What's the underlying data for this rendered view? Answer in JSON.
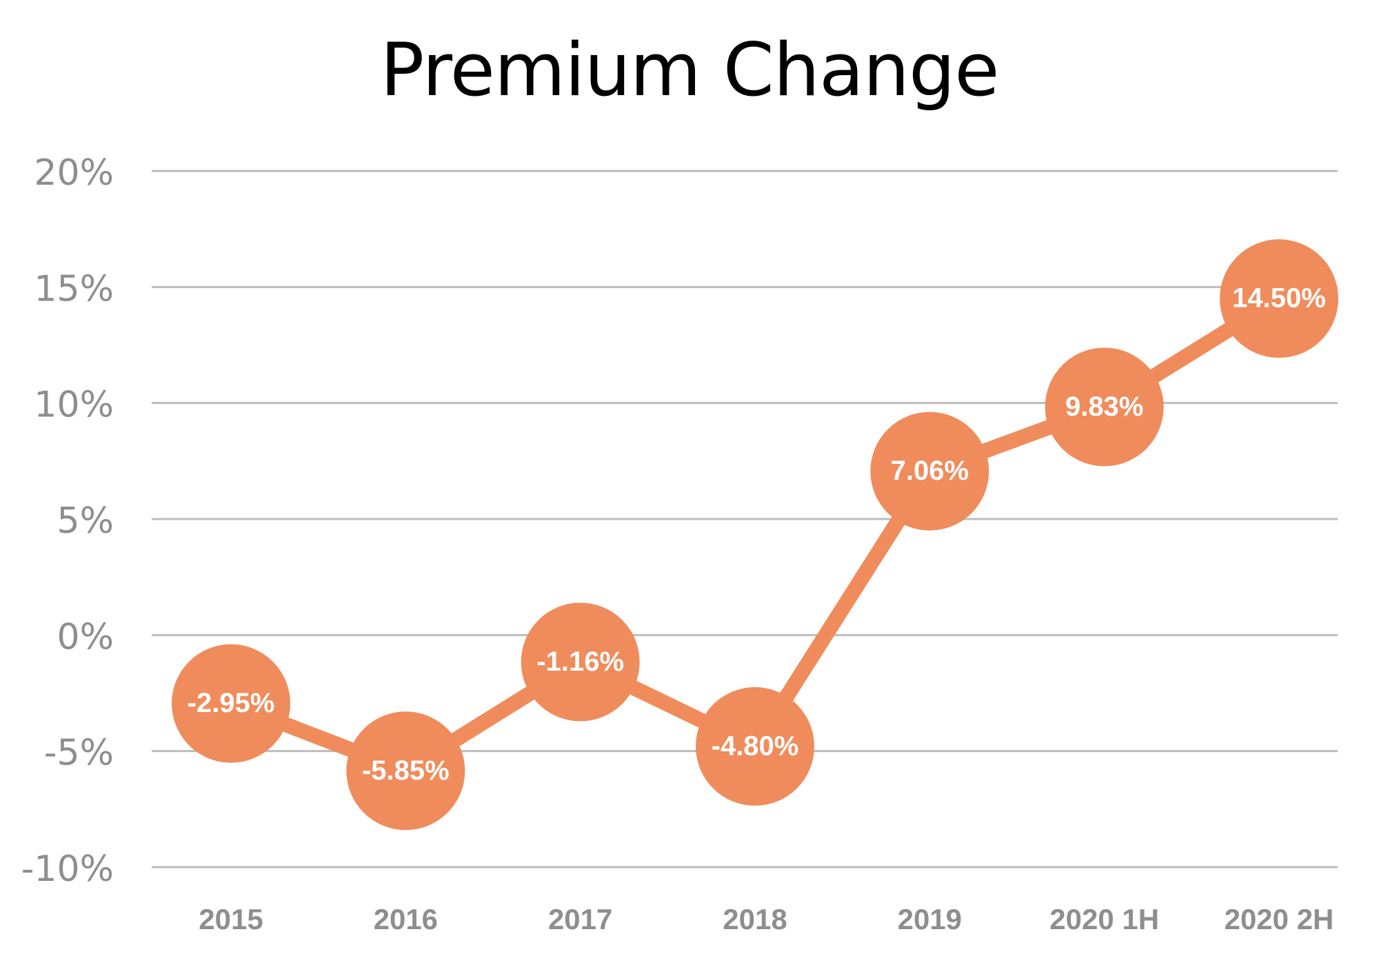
{
  "chart_data": {
    "type": "line",
    "title": "Premium Change",
    "categories": [
      "2015",
      "2016",
      "2017",
      "2018",
      "2019",
      "2020 1H",
      "2020 2H"
    ],
    "series": [
      {
        "values": [
          -2.95,
          -5.85,
          -1.16,
          -4.8,
          7.06,
          9.83,
          14.5
        ],
        "data_labels": [
          "-2.95%",
          "-5.85%",
          "-1.16%",
          "-4.80%",
          "7.06%",
          "9.83%",
          "14.50%"
        ]
      }
    ],
    "y_ticks": [
      20,
      15,
      10,
      5,
      0,
      -5,
      -10
    ],
    "y_tick_labels": [
      "20%",
      "15%",
      "10%",
      "5%",
      "0%",
      "-5%",
      "-10%"
    ],
    "ylim": [
      -10,
      20
    ],
    "grid": true,
    "legend": "none",
    "colors": {
      "series": "#F08C5C",
      "gridline": "#BDBDBD",
      "tick_label": "#8E8E8E",
      "data_label": "#FFFFFF",
      "title": "#000000"
    }
  }
}
